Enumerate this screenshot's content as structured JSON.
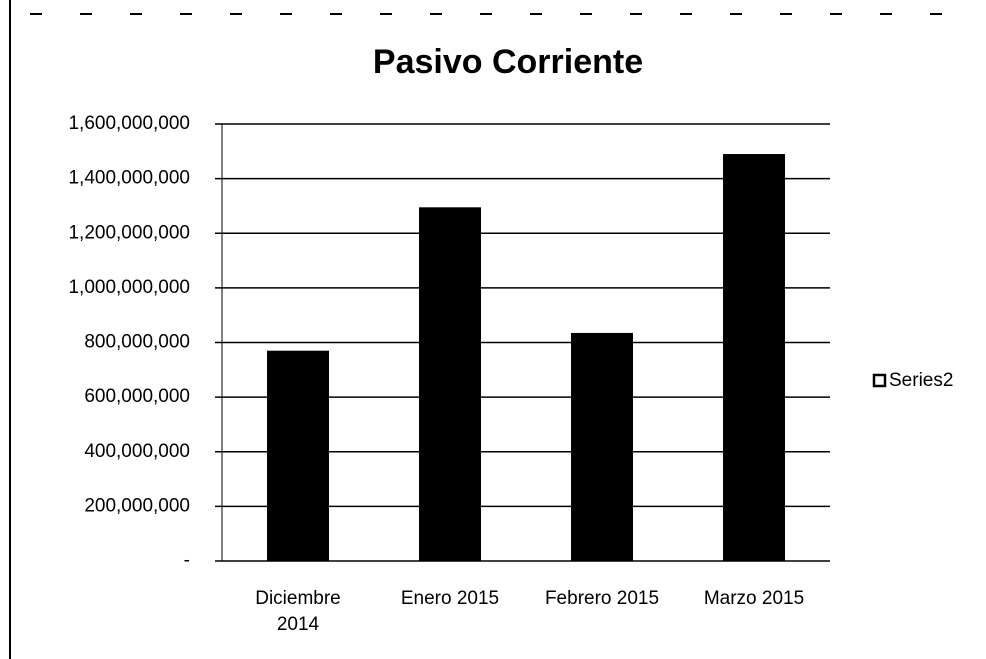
{
  "chart_data": {
    "type": "bar",
    "title": "Pasivo Corriente",
    "categories": [
      "Diciembre 2014",
      "Enero 2015",
      "Febrero 2015",
      "Marzo 2015"
    ],
    "series": [
      {
        "name": "Series2",
        "color": "#000000",
        "values": [
          770000000,
          1295000000,
          835000000,
          1490000000
        ]
      }
    ],
    "ylim": [
      0,
      1600000000
    ],
    "yticks": [
      {
        "value": 0,
        "label": "-"
      },
      {
        "value": 200000000,
        "label": "200,000,000"
      },
      {
        "value": 400000000,
        "label": "400,000,000"
      },
      {
        "value": 600000000,
        "label": "600,000,000"
      },
      {
        "value": 800000000,
        "label": "800,000,000"
      },
      {
        "value": 1000000000,
        "label": "1,000,000,000"
      },
      {
        "value": 1200000000,
        "label": "1,200,000,000"
      },
      {
        "value": 1400000000,
        "label": "1,400,000,000"
      },
      {
        "value": 1600000000,
        "label": "1,600,000,000"
      }
    ],
    "grid": true,
    "legend": "right"
  }
}
